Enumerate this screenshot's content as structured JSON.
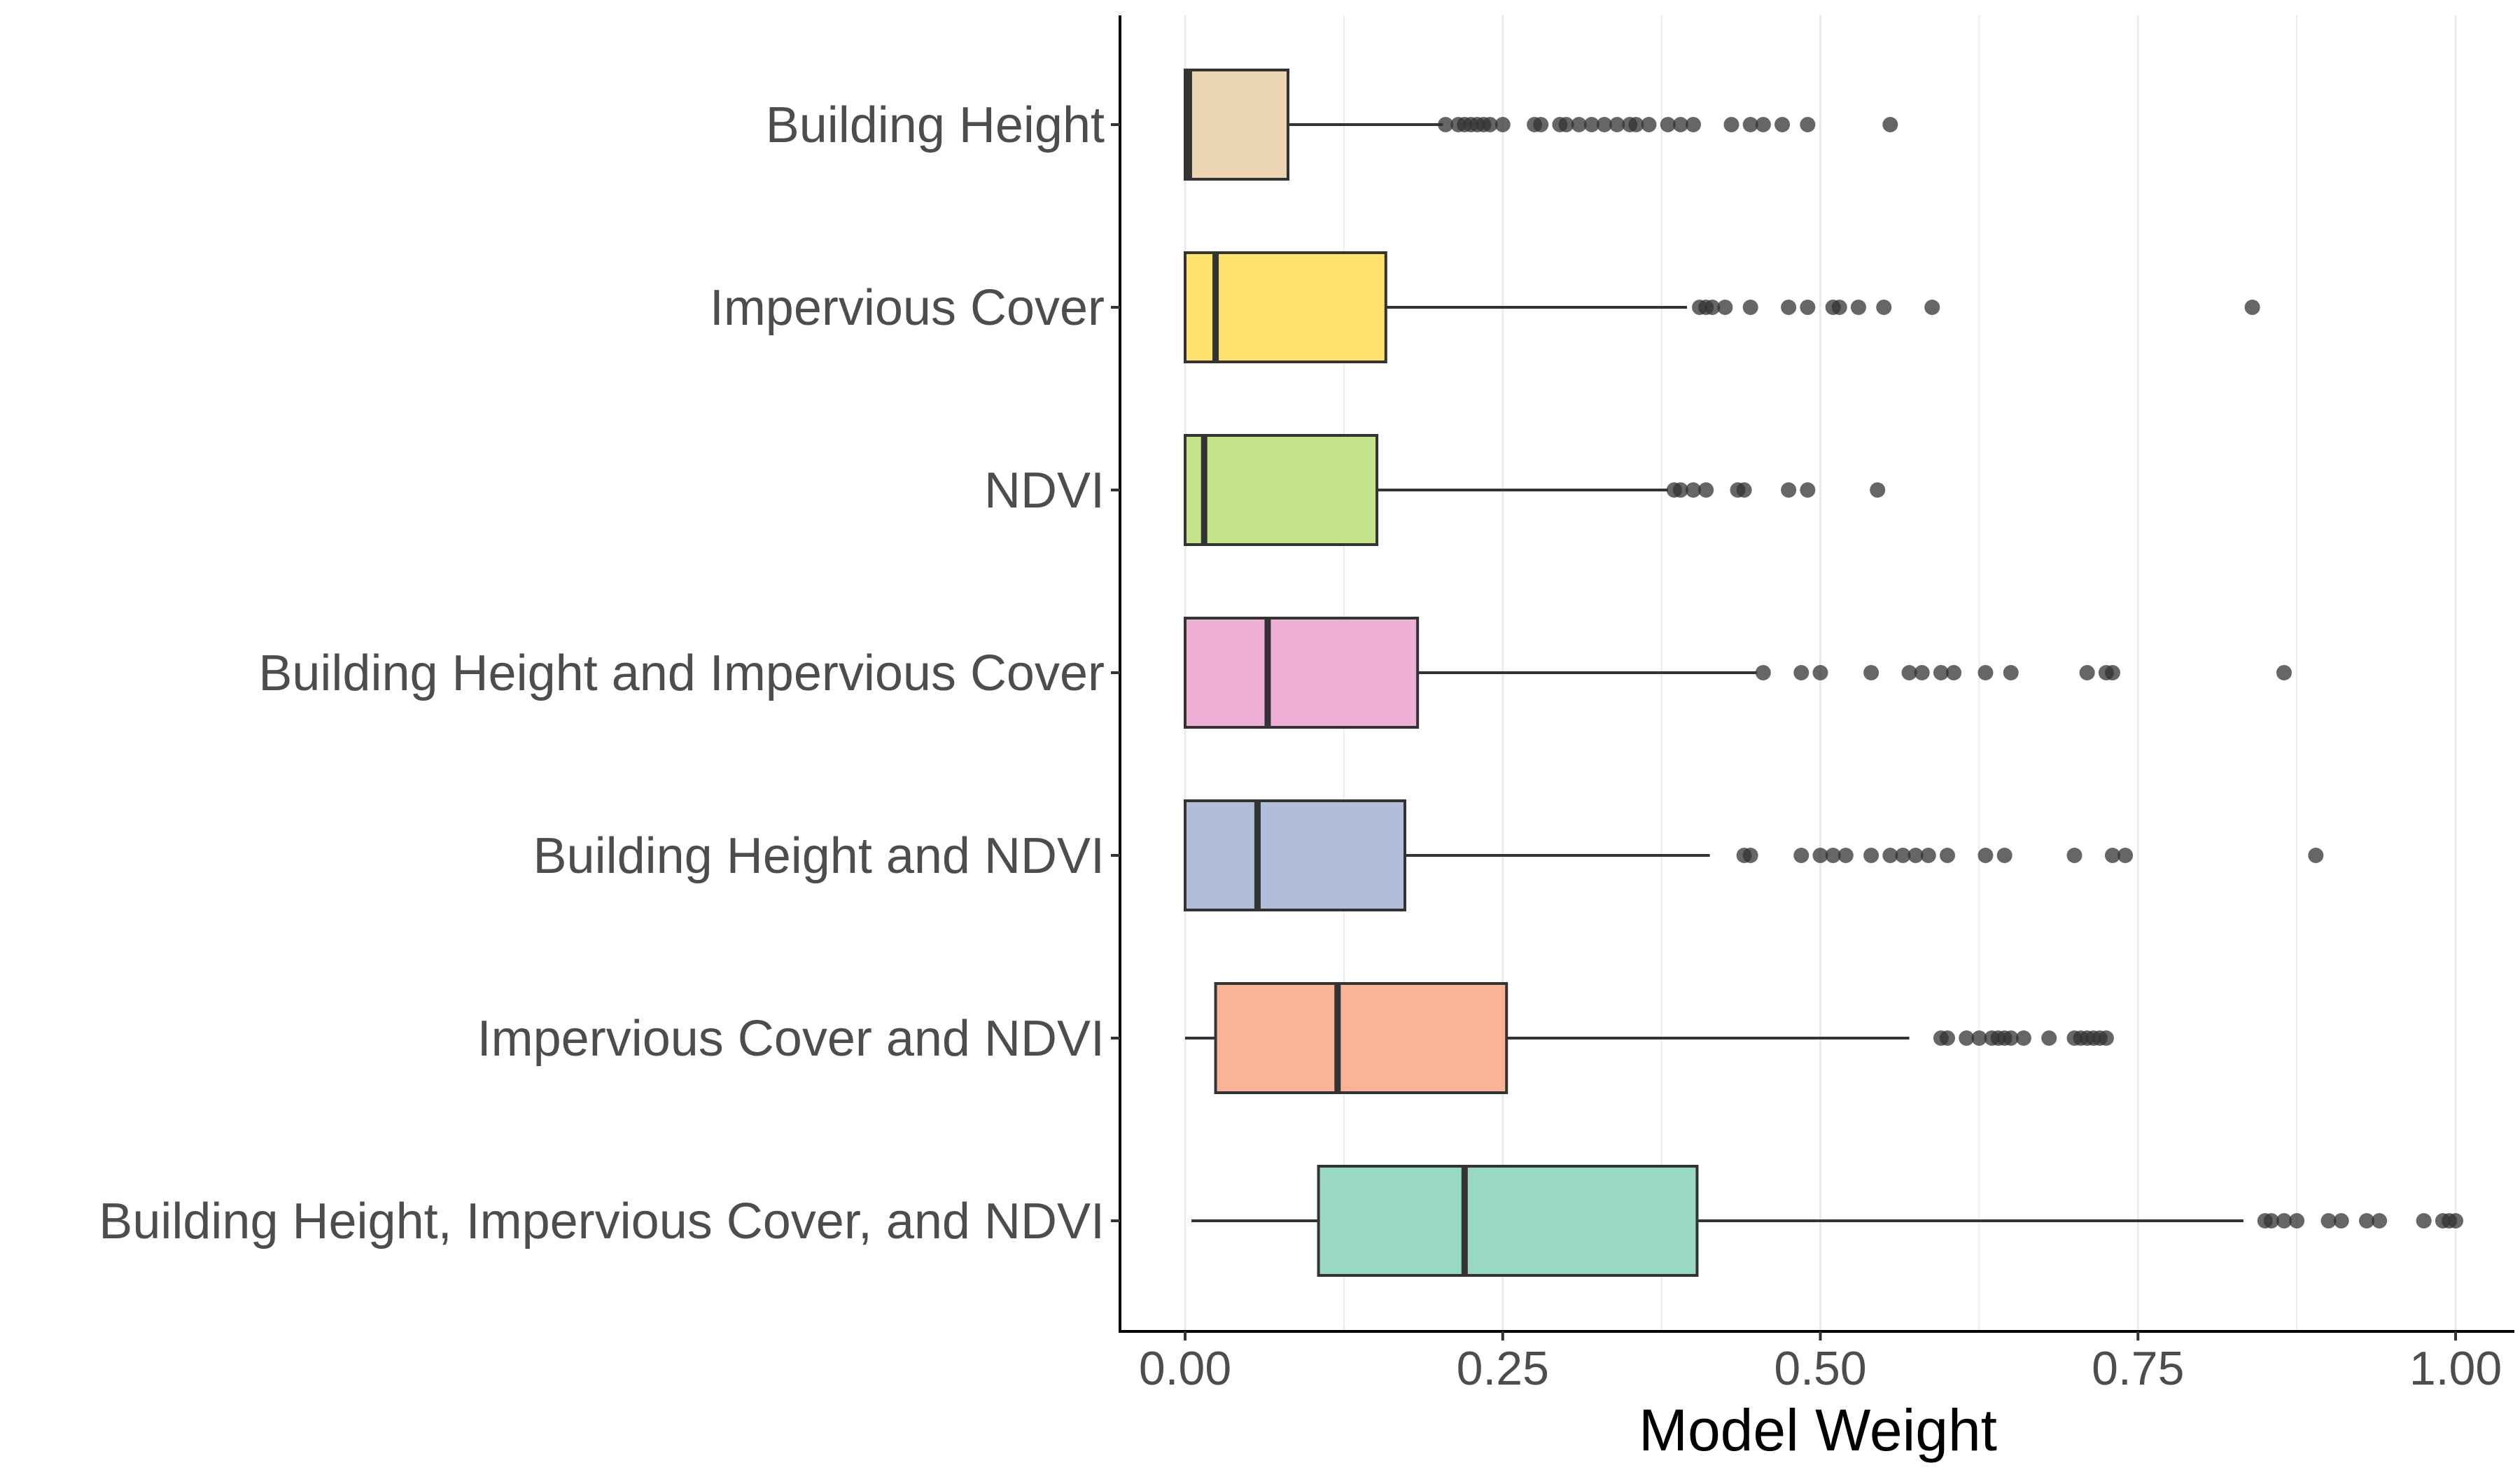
{
  "chart_data": {
    "type": "boxplot",
    "orientation": "horizontal",
    "xlabel": "Model Weight",
    "xlim": [
      -0.05,
      1.05
    ],
    "xticks": [
      "0.00",
      "0.25",
      "0.50",
      "0.75",
      "1.00"
    ],
    "grid": "vertical major gridlines",
    "legend": "none",
    "categories": [
      "Building Height",
      "Impervious Cover",
      "NDVI",
      "Building Height and Impervious Cover",
      "Building Height and NDVI",
      "Impervious Cover and NDVI",
      "Building Height, Impervious Cover, and NDVI"
    ],
    "boxes": [
      {
        "category": "Building Height",
        "color": "#EBD3AE",
        "whisker_low": 0.0,
        "q1": 0.0,
        "median": 0.003,
        "q3": 0.081,
        "whisker_high": 0.203,
        "outliers": [
          0.205,
          0.215,
          0.22,
          0.225,
          0.23,
          0.235,
          0.24,
          0.25,
          0.275,
          0.28,
          0.295,
          0.3,
          0.31,
          0.32,
          0.33,
          0.34,
          0.35,
          0.355,
          0.365,
          0.38,
          0.39,
          0.4,
          0.43,
          0.445,
          0.455,
          0.47,
          0.49,
          0.555
        ]
      },
      {
        "category": "Impervious Cover",
        "color": "#FFE066",
        "whisker_low": 0.0,
        "q1": 0.0,
        "median": 0.024,
        "q3": 0.158,
        "whisker_high": 0.395,
        "outliers": [
          0.405,
          0.41,
          0.415,
          0.425,
          0.445,
          0.475,
          0.49,
          0.51,
          0.515,
          0.53,
          0.55,
          0.588,
          0.84
        ]
      },
      {
        "category": "NDVI",
        "color": "#C3E384",
        "whisker_low": 0.0,
        "q1": 0.0,
        "median": 0.015,
        "q3": 0.151,
        "whisker_high": 0.38,
        "outliers": [
          0.385,
          0.39,
          0.4,
          0.41,
          0.435,
          0.44,
          0.475,
          0.49,
          0.545
        ]
      },
      {
        "category": "Building Height and Impervious Cover",
        "color": "#EEACD5",
        "whisker_low": 0.0,
        "q1": 0.0,
        "median": 0.065,
        "q3": 0.183,
        "whisker_high": 0.45,
        "outliers": [
          0.455,
          0.485,
          0.5,
          0.54,
          0.57,
          0.58,
          0.595,
          0.605,
          0.63,
          0.65,
          0.71,
          0.725,
          0.73,
          0.865
        ]
      },
      {
        "category": "Building Height and NDVI",
        "color": "#ACBBD9",
        "whisker_low": 0.0,
        "q1": 0.0,
        "median": 0.057,
        "q3": 0.173,
        "whisker_high": 0.413,
        "outliers": [
          0.44,
          0.445,
          0.485,
          0.5,
          0.51,
          0.52,
          0.54,
          0.555,
          0.565,
          0.575,
          0.585,
          0.6,
          0.63,
          0.645,
          0.7,
          0.73,
          0.74,
          0.89
        ]
      },
      {
        "category": "Impervious Cover and NDVI",
        "color": "#FAAF91",
        "whisker_low": 0.0,
        "q1": 0.024,
        "median": 0.12,
        "q3": 0.253,
        "whisker_high": 0.57,
        "outliers": [
          0.595,
          0.6,
          0.615,
          0.625,
          0.635,
          0.64,
          0.645,
          0.65,
          0.66,
          0.68,
          0.7,
          0.705,
          0.71,
          0.715,
          0.72,
          0.725
        ]
      },
      {
        "category": "Building Height, Impervious Cover, and NDVI",
        "color": "#95D6C3",
        "whisker_low": 0.005,
        "q1": 0.105,
        "median": 0.22,
        "q3": 0.403,
        "whisker_high": 0.833,
        "outliers": [
          0.85,
          0.855,
          0.865,
          0.875,
          0.9,
          0.91,
          0.93,
          0.94,
          0.975,
          0.99,
          0.995,
          1.0
        ]
      }
    ]
  }
}
